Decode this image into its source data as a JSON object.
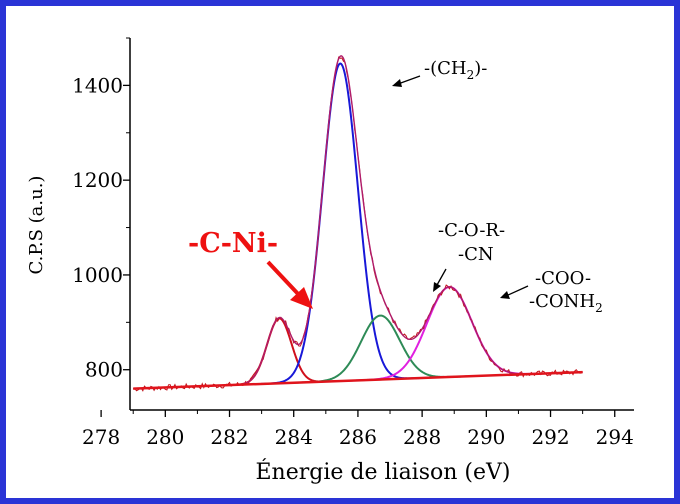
{
  "colors": {
    "frame": "#2a34d6",
    "raw": "#c0141c",
    "total": "#b01c6a",
    "baseline": "#e0141c",
    "c_ni": "#d0101c",
    "ch2": "#1818d8",
    "c_o_r": "#2e8b57",
    "coo": "#e020e0",
    "annotation_red": "#ee1111"
  },
  "chart_data": {
    "type": "line",
    "xlabel": "Énergie de liaison (eV)",
    "ylabel": "C.P.S (a.u.)",
    "xlim": [
      278.9,
      294.6
    ],
    "ylim": [
      715,
      1500
    ],
    "xticks": [
      {
        "value": 278,
        "label": "278"
      },
      {
        "value": 280,
        "label": "280"
      },
      {
        "value": 282,
        "label": "282"
      },
      {
        "value": 284,
        "label": "284"
      },
      {
        "value": 286,
        "label": "286"
      },
      {
        "value": 288,
        "label": "288"
      },
      {
        "value": 290,
        "label": "290"
      },
      {
        "value": 292,
        "label": "292"
      },
      {
        "value": 294,
        "label": "294"
      }
    ],
    "yticks": [
      {
        "value": 800,
        "label": "800"
      },
      {
        "value": 1000,
        "label": "1000"
      },
      {
        "value": 1200,
        "label": "1200"
      },
      {
        "value": 1400,
        "label": "1400"
      }
    ],
    "baseline": {
      "x": [
        279,
        293
      ],
      "y": [
        760,
        795
      ]
    },
    "components": [
      {
        "key": "c_ni",
        "label": "-C-Ni-",
        "center": 283.55,
        "height": 137,
        "sigma": 0.38
      },
      {
        "key": "ch2",
        "label": "-(CH2)-",
        "center": 285.45,
        "height": 670,
        "sigma": 0.55
      },
      {
        "key": "c_o_r",
        "label": "-C-O-R- / -CN",
        "center": 286.7,
        "height": 135,
        "sigma": 0.6
      },
      {
        "key": "coo",
        "label": "-COO- / -CONH2",
        "center": 288.85,
        "height": 190,
        "sigma": 0.7
      }
    ],
    "annotations": {
      "c_ni": "-C-Ni-",
      "ch2_prefix": "-(CH",
      "ch2_sub": "2",
      "ch2_suffix": ")-",
      "cor_line1": "-C-O-R-",
      "cor_line2": "-CN",
      "coo_line1": "-COO-",
      "coo_line2_prefix": "-CONH",
      "coo_line2_sub": "2"
    }
  }
}
